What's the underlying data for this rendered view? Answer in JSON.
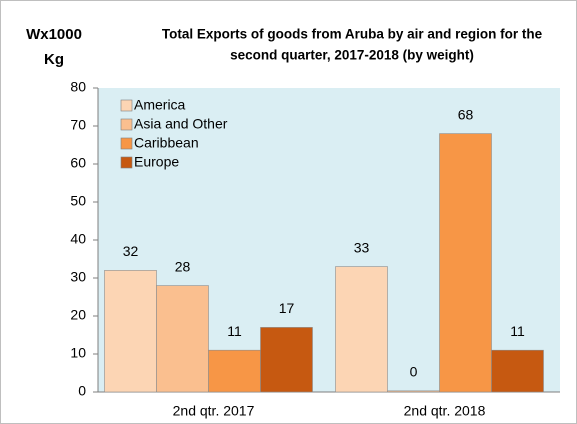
{
  "chart_data": {
    "type": "bar",
    "title": [
      "Total Exports of goods from Aruba by air and region for the",
      "second quarter, 2017-2018 (by weight)"
    ],
    "ylabel": [
      "Wx1000",
      "Kg"
    ],
    "categories": [
      "2nd qtr. 2017",
      "2nd qtr. 2018"
    ],
    "series": [
      {
        "name": "America",
        "color": "#fcd5b4",
        "values": [
          32,
          33
        ]
      },
      {
        "name": "Asia and Other",
        "color": "#fabf8f",
        "values": [
          28,
          0.3
        ],
        "value_labels": [
          "28",
          "0"
        ]
      },
      {
        "name": "Caribbean",
        "color": "#f79646",
        "values": [
          11,
          68
        ]
      },
      {
        "name": "Europe",
        "color": "#c65911",
        "values": [
          17,
          11
        ]
      }
    ],
    "ylim": [
      0,
      80
    ],
    "yticks": [
      0,
      10,
      20,
      30,
      40,
      50,
      60,
      70,
      80
    ],
    "grid": false,
    "legend": "upper left"
  }
}
